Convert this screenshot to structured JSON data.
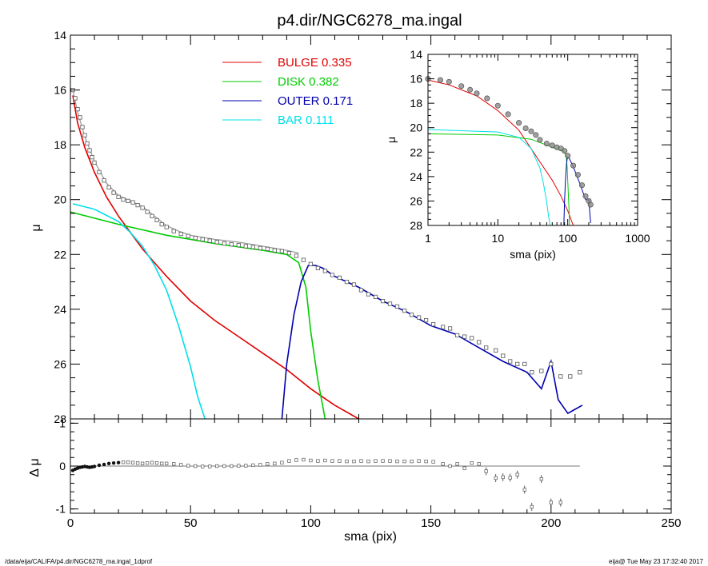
{
  "footer": {
    "left": "/data/eija/CALIFA/p4.dir/NGC6278_ma.ingal_1dprof",
    "right": "eija@  Tue May 23 17:32:40 2017"
  },
  "chart_data": [
    {
      "id": "main",
      "type": "line",
      "title": "p4.dir/NGC6278_ma.ingal",
      "xlabel": "",
      "ylabel": "μ",
      "xlim": [
        0,
        250
      ],
      "ylim": [
        28,
        14
      ],
      "yticks": [
        14,
        16,
        18,
        20,
        22,
        24,
        26,
        28
      ],
      "legend_position": "top-center",
      "series": [
        {
          "name": "BULGE",
          "label_value": "0.335",
          "color": "#e00000",
          "x": [
            1,
            3,
            6,
            10,
            15,
            20,
            25,
            30,
            35,
            40,
            50,
            60,
            70,
            80,
            90,
            100,
            110,
            120
          ],
          "y": [
            16.2,
            17.2,
            18.1,
            19.0,
            19.9,
            20.6,
            21.2,
            21.8,
            22.3,
            22.8,
            23.7,
            24.4,
            25.0,
            25.6,
            26.2,
            26.9,
            27.5,
            28.0
          ]
        },
        {
          "name": "DISK",
          "label_value": "0.382",
          "color": "#00cc00",
          "x": [
            0,
            20,
            40,
            60,
            80,
            90,
            95,
            98,
            100,
            103,
            106
          ],
          "y": [
            20.45,
            20.9,
            21.3,
            21.6,
            21.85,
            22.0,
            22.3,
            23.2,
            24.8,
            26.6,
            28.0
          ]
        },
        {
          "name": "OUTER",
          "label_value": "0.171",
          "color": "#0000b0",
          "x": [
            88,
            90,
            93,
            96,
            99,
            102,
            105,
            110,
            120,
            130,
            140,
            150,
            160,
            170,
            180,
            190,
            193,
            196,
            200,
            203,
            207,
            210,
            213
          ],
          "y": [
            28.0,
            26.0,
            24.2,
            23.0,
            22.4,
            22.4,
            22.5,
            22.8,
            23.2,
            23.7,
            24.1,
            24.6,
            24.9,
            25.4,
            25.9,
            26.3,
            26.6,
            26.9,
            25.9,
            27.3,
            27.8,
            27.65,
            27.5
          ]
        },
        {
          "name": "BAR",
          "label_value": "0.111",
          "color": "#00e0e8",
          "x": [
            1,
            10,
            20,
            25,
            30,
            35,
            40,
            45,
            50,
            53,
            56
          ],
          "y": [
            20.15,
            20.35,
            20.8,
            21.2,
            21.7,
            22.4,
            23.3,
            24.6,
            26.1,
            27.2,
            28.0
          ]
        },
        {
          "name": "",
          "label_value": "",
          "color": "#999999",
          "x": [
            1,
            3,
            6,
            10,
            15,
            20,
            25,
            30,
            35,
            40,
            45,
            50,
            60,
            70,
            80,
            90,
            95
          ],
          "y": [
            16.0,
            16.8,
            17.7,
            18.6,
            19.4,
            19.85,
            20.05,
            20.25,
            20.6,
            20.95,
            21.15,
            21.3,
            21.45,
            21.55,
            21.7,
            21.85,
            21.95
          ]
        }
      ],
      "observed": {
        "x": [
          1,
          2,
          3,
          4,
          5,
          6,
          7,
          8,
          9,
          10,
          12,
          14,
          16,
          18,
          20,
          22,
          24,
          26,
          28,
          30,
          32,
          34,
          36,
          38,
          40,
          43,
          46,
          49,
          52,
          55,
          58,
          61,
          64,
          67,
          70,
          73,
          76,
          79,
          82,
          85,
          88,
          91,
          94,
          97,
          100,
          103,
          106,
          109,
          112,
          115,
          118,
          121,
          124,
          127,
          130,
          133,
          136,
          139,
          142,
          145,
          148,
          151,
          155,
          158,
          161,
          164,
          167,
          170,
          173,
          177,
          180,
          183,
          186,
          189,
          192,
          196,
          200,
          204,
          208,
          212
        ],
        "y": [
          16.0,
          16.3,
          16.7,
          17.0,
          17.35,
          17.65,
          17.95,
          18.2,
          18.45,
          18.65,
          19.0,
          19.3,
          19.55,
          19.75,
          19.9,
          20.0,
          20.05,
          20.1,
          20.2,
          20.3,
          20.45,
          20.6,
          20.75,
          20.9,
          21.0,
          21.15,
          21.25,
          21.33,
          21.4,
          21.45,
          21.5,
          21.55,
          21.6,
          21.63,
          21.66,
          21.7,
          21.73,
          21.77,
          21.8,
          21.85,
          21.88,
          21.95,
          22.05,
          22.2,
          22.35,
          22.5,
          22.6,
          22.75,
          22.85,
          23.0,
          23.1,
          23.3,
          23.45,
          23.55,
          23.7,
          23.8,
          23.9,
          24.05,
          24.2,
          24.3,
          24.4,
          24.55,
          24.65,
          24.7,
          24.95,
          25.0,
          25.05,
          25.2,
          25.4,
          25.5,
          25.7,
          25.9,
          26.0,
          26.0,
          26.3,
          26.25,
          26.0,
          26.45,
          26.45,
          26.3
        ]
      }
    },
    {
      "id": "inset",
      "type": "line",
      "xlabel": "sma (pix)",
      "ylabel": "μ",
      "xscale": "log",
      "xlim": [
        1,
        1000
      ],
      "ylim": [
        28,
        14
      ],
      "xticks": [
        1,
        10,
        100,
        1000
      ],
      "yticks": [
        14,
        16,
        18,
        20,
        22,
        24,
        26,
        28
      ],
      "series": [
        {
          "name": "BULGE",
          "color": "#e00000",
          "x": [
            1,
            2,
            5,
            10,
            20,
            40,
            60,
            80,
            100,
            120
          ],
          "y": [
            16.1,
            16.5,
            17.4,
            18.6,
            20.2,
            22.8,
            24.3,
            25.6,
            26.8,
            28.0
          ]
        },
        {
          "name": "DISK",
          "color": "#00cc00",
          "x": [
            1,
            10,
            30,
            60,
            80,
            90,
            95,
            98,
            101,
            104,
            106
          ],
          "y": [
            20.5,
            20.6,
            20.95,
            21.6,
            21.85,
            22.0,
            22.3,
            23.2,
            24.8,
            26.6,
            28.0
          ]
        },
        {
          "name": "OUTER",
          "color": "#0000b0",
          "x": [
            88,
            90,
            93,
            96,
            99,
            105,
            120,
            150,
            180,
            200,
            213
          ],
          "y": [
            28.0,
            26.0,
            24.2,
            23.0,
            22.4,
            22.5,
            23.2,
            24.6,
            25.9,
            25.9,
            27.8
          ]
        },
        {
          "name": "BAR",
          "color": "#00e0e8",
          "x": [
            1,
            10,
            20,
            30,
            40,
            45,
            50,
            53,
            56
          ],
          "y": [
            20.15,
            20.35,
            20.8,
            21.7,
            23.3,
            24.6,
            26.1,
            27.2,
            28.0
          ]
        }
      ],
      "observed": {
        "x": [
          1,
          1.5,
          2,
          3,
          4,
          5,
          7,
          10,
          14,
          20,
          25,
          30,
          35,
          40,
          50,
          60,
          70,
          80,
          90,
          100,
          120,
          140,
          160,
          180,
          200,
          212
        ],
        "y": [
          16.0,
          16.1,
          16.25,
          16.6,
          16.9,
          17.2,
          17.6,
          18.2,
          18.9,
          19.6,
          20.05,
          20.3,
          20.6,
          21.0,
          21.3,
          21.45,
          21.6,
          21.7,
          21.9,
          22.3,
          23.1,
          23.85,
          24.7,
          25.6,
          26.0,
          26.3
        ]
      }
    },
    {
      "id": "residual",
      "type": "scatter",
      "xlabel": "sma (pix)",
      "ylabel": "Δ μ",
      "xlim": [
        0,
        250
      ],
      "ylim": [
        -1.1,
        1.1
      ],
      "xticks": [
        0,
        50,
        100,
        150,
        200,
        250
      ],
      "yticks": [
        -1,
        0,
        1
      ],
      "reference_line": {
        "y": 0,
        "x_end": 212
      },
      "points": {
        "x": [
          1,
          2,
          3,
          4,
          5,
          6,
          7,
          8,
          9,
          10,
          12,
          14,
          16,
          18,
          20,
          22,
          24,
          26,
          28,
          30,
          32,
          34,
          36,
          38,
          40,
          43,
          46,
          49,
          52,
          55,
          58,
          61,
          64,
          67,
          70,
          73,
          76,
          79,
          82,
          85,
          88,
          91,
          94,
          97,
          100,
          103,
          106,
          109,
          112,
          115,
          118,
          121,
          124,
          127,
          130,
          133,
          136,
          139,
          142,
          145,
          148,
          151,
          155,
          158,
          161,
          164,
          167,
          170,
          173,
          177,
          180,
          183,
          186,
          189,
          192,
          196,
          200,
          204
        ],
        "y": [
          -0.1,
          -0.07,
          -0.05,
          -0.03,
          -0.02,
          -0.01,
          -0.02,
          -0.03,
          -0.02,
          -0.01,
          0.02,
          0.04,
          0.06,
          0.07,
          0.08,
          0.09,
          0.09,
          0.08,
          0.07,
          0.06,
          0.07,
          0.08,
          0.07,
          0.06,
          0.06,
          0.05,
          0.03,
          0.01,
          0.0,
          -0.01,
          -0.01,
          0.0,
          0.0,
          0.0,
          0.01,
          0.01,
          0.02,
          0.03,
          0.05,
          0.06,
          0.08,
          0.12,
          0.14,
          0.15,
          0.13,
          0.12,
          0.13,
          0.12,
          0.12,
          0.11,
          0.11,
          0.12,
          0.11,
          0.12,
          0.12,
          0.12,
          0.11,
          0.11,
          0.11,
          0.12,
          0.11,
          0.1,
          0.05,
          0.0,
          0.05,
          -0.05,
          0.07,
          0.05,
          -0.12,
          -0.28,
          -0.26,
          -0.27,
          -0.2,
          -0.55,
          -0.95,
          -0.3,
          -0.85,
          -0.85
        ]
      }
    }
  ]
}
